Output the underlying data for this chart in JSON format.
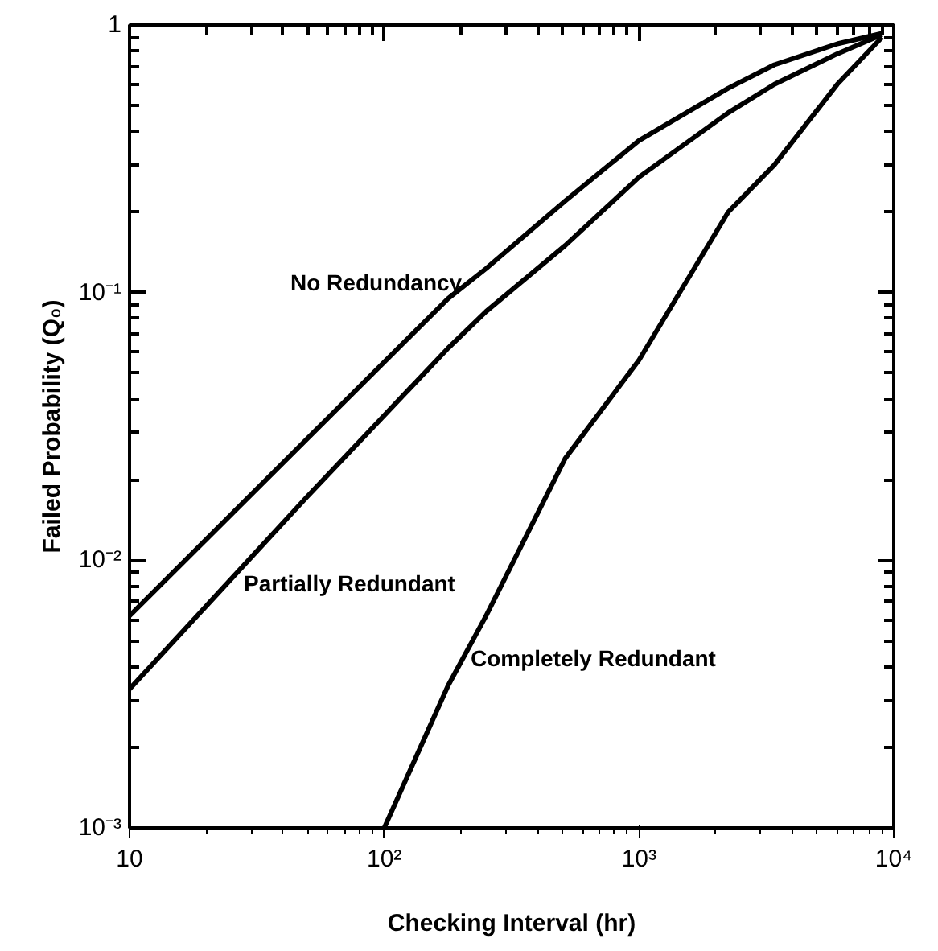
{
  "chart_data": {
    "type": "line",
    "xlabel": "Checking Interval (hr)",
    "ylabel": "Failed Probability (Q₀)",
    "log": "xy",
    "grid": false,
    "legend": false,
    "marker": "none",
    "line_style": "solid",
    "xlim": [
      10,
      10000
    ],
    "ylim": [
      0.001,
      1
    ],
    "xticks": [
      10,
      {
        "value": 100,
        "label": "10²"
      },
      {
        "value": 1000,
        "label": "10³"
      },
      {
        "value": 10000,
        "label": "10⁴"
      }
    ],
    "yticks": [
      {
        "value": 0.001,
        "label": "10⁻³"
      },
      {
        "value": 0.01,
        "label": "10⁻²"
      },
      {
        "value": 0.1,
        "label": "10⁻¹"
      },
      1
    ],
    "series": [
      {
        "name": "No Redundancy",
        "color": "#000000",
        "x": [
          10,
          49,
          178,
          251,
          513,
          1000,
          2240,
          3400,
          6000,
          9000
        ],
        "values": [
          0.0062,
          0.028,
          0.095,
          0.123,
          0.22,
          0.37,
          0.58,
          0.71,
          0.85,
          0.93
        ]
      },
      {
        "name": "Partially Redundant",
        "color": "#000000",
        "x": [
          10,
          49,
          178,
          251,
          513,
          1000,
          2240,
          3400,
          6000,
          9000
        ],
        "values": [
          0.0033,
          0.017,
          0.062,
          0.085,
          0.15,
          0.27,
          0.47,
          0.6,
          0.78,
          0.92
        ]
      },
      {
        "name": "Completely Redundant",
        "color": "#000000",
        "x": [
          100,
          178,
          251,
          513,
          1000,
          2240,
          3400,
          6000,
          9000
        ],
        "values": [
          0.001,
          0.0034,
          0.0062,
          0.024,
          0.056,
          0.2,
          0.3,
          0.6,
          0.9
        ]
      }
    ]
  }
}
